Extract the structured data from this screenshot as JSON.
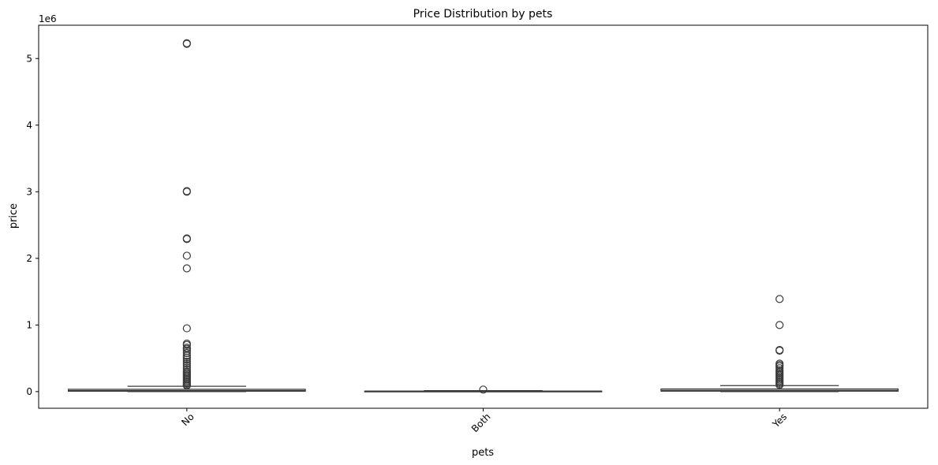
{
  "chart_data": {
    "type": "box",
    "title": "Price Distribution by pets",
    "xlabel": "pets",
    "ylabel": "price",
    "y_scale_label": "1e6",
    "y_multiplier": 1000000,
    "ylim": [
      -250000,
      5500000
    ],
    "yticks": [
      0,
      1000000,
      2000000,
      3000000,
      4000000,
      5000000
    ],
    "ytick_labels": [
      "0",
      "1",
      "2",
      "3",
      "4",
      "5"
    ],
    "categories": [
      "No",
      "Both",
      "Yes"
    ],
    "grid": false,
    "legend": "none",
    "colors": {
      "box": "#ffffff",
      "edge": "#3a3a3a",
      "outlier": "#3a3a3a"
    },
    "boxes": [
      {
        "category": "No",
        "whislo": 0,
        "q1": 5000,
        "median": 15000,
        "q3": 35000,
        "whishi": 80000,
        "outliers": [
          5230000,
          5220000,
          3010000,
          3000000,
          2300000,
          2290000,
          2040000,
          1850000,
          950000,
          720000,
          700000,
          660000,
          640000,
          610000,
          580000,
          540000,
          510000,
          480000,
          450000,
          420000,
          390000,
          360000,
          330000,
          300000,
          280000,
          260000,
          240000,
          220000,
          200000,
          180000,
          160000,
          140000,
          120000,
          100000,
          90000
        ]
      },
      {
        "category": "Both",
        "whislo": 0,
        "q1": 3000,
        "median": 5000,
        "q3": 8000,
        "whishi": 15000,
        "outliers": [
          30000
        ]
      },
      {
        "category": "Yes",
        "whislo": 0,
        "q1": 6000,
        "median": 18000,
        "q3": 40000,
        "whishi": 90000,
        "outliers": [
          1390000,
          1000000,
          625000,
          615000,
          420000,
          400000,
          380000,
          350000,
          320000,
          300000,
          280000,
          260000,
          240000,
          220000,
          200000,
          180000,
          160000,
          140000,
          120000,
          100000
        ]
      }
    ]
  }
}
